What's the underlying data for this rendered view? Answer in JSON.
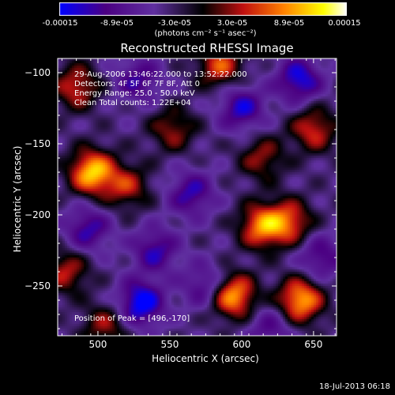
{
  "chart_data": {
    "type": "heatmap",
    "title": "Reconstructed RHESSI Image",
    "xlabel": "Heliocentric X (arcsec)",
    "ylabel": "Heliocentric Y (arcsec)",
    "xlim": [
      472,
      666
    ],
    "ylim": [
      -285,
      -90
    ],
    "xticks": [
      "500",
      "550",
      "600",
      "650"
    ],
    "yticks": [
      "-100",
      "-150",
      "-200",
      "-250"
    ],
    "colorbar": {
      "ticks": [
        "-0.00015",
        "-8.9e-05",
        "-3.0e-05",
        "3.0e-05",
        "8.9e-05",
        "0.00015"
      ],
      "label": "(photons cm⁻² s⁻¹ asec⁻²)",
      "range": [
        -0.00015,
        0.00015
      ],
      "colors": [
        "#0000ff",
        "#4b0082",
        "#6030a0",
        "#000000",
        "#c01010",
        "#ff8000",
        "#ffff00",
        "#ffffff"
      ]
    },
    "annotations": {
      "line1": "29-Aug-2006 13:46:22.000 to 13:52:22.000",
      "line2": "Detectors: 4F 5F 6F 7F 8F, Att 0",
      "line3": "Energy Range: 25.0 - 50.0 keV",
      "line4": "Clean     Total counts: 1.22E+04",
      "peak": "Position of Peak = [496,-170]"
    },
    "sources": [
      {
        "x": 496,
        "y": -170,
        "value": 0.00015
      },
      {
        "x": 594,
        "y": -257,
        "value": 0.00014
      },
      {
        "x": 641,
        "y": -260,
        "value": 0.00014
      },
      {
        "x": 614,
        "y": -208,
        "value": 0.00012
      },
      {
        "x": 585,
        "y": -95,
        "value": 0.0001
      },
      {
        "x": 633,
        "y": -205,
        "value": 0.0001
      },
      {
        "x": 650,
        "y": -140,
        "value": 9e-05
      },
      {
        "x": 485,
        "y": -110,
        "value": 9e-05
      },
      {
        "x": 520,
        "y": -180,
        "value": 8e-05
      },
      {
        "x": 552,
        "y": -140,
        "value": 7e-05
      },
      {
        "x": 478,
        "y": -240,
        "value": 8e-05
      },
      {
        "x": 505,
        "y": -278,
        "value": 7e-05
      },
      {
        "x": 614,
        "y": -160,
        "value": 7e-05
      },
      {
        "x": 540,
        "y": -225,
        "value": -8e-05
      },
      {
        "x": 528,
        "y": -105,
        "value": -7e-05
      },
      {
        "x": 565,
        "y": -185,
        "value": -8e-05
      },
      {
        "x": 600,
        "y": -125,
        "value": -9e-05
      },
      {
        "x": 640,
        "y": -105,
        "value": -0.0001
      },
      {
        "x": 493,
        "y": -210,
        "value": -8e-05
      },
      {
        "x": 530,
        "y": -262,
        "value": -0.00012
      },
      {
        "x": 575,
        "y": -250,
        "value": -7e-05
      },
      {
        "x": 655,
        "y": -230,
        "value": -7e-05
      },
      {
        "x": 620,
        "y": -280,
        "value": -6e-05
      }
    ]
  },
  "timestamp": "18-Jul-2013 06:18"
}
